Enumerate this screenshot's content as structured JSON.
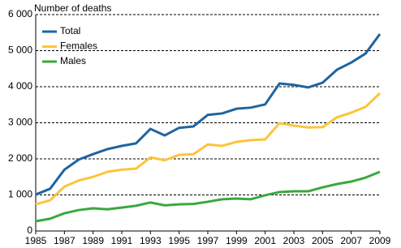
{
  "chart_data": {
    "type": "line",
    "title": "Number of deaths",
    "x": [
      1985,
      1986,
      1987,
      1988,
      1989,
      1990,
      1991,
      1992,
      1993,
      1994,
      1995,
      1996,
      1997,
      1998,
      1999,
      2000,
      2001,
      2002,
      2003,
      2004,
      2005,
      2006,
      2007,
      2008,
      2009
    ],
    "series": [
      {
        "name": "Total",
        "color": "#1f64a0",
        "values": [
          1010,
          1170,
          1700,
          1980,
          2130,
          2270,
          2360,
          2430,
          2830,
          2650,
          2860,
          2900,
          3220,
          3260,
          3390,
          3420,
          3510,
          4090,
          4050,
          3980,
          4110,
          4470,
          4670,
          4920,
          5460
        ]
      },
      {
        "name": "Females",
        "color": "#fcc43c",
        "values": [
          740,
          850,
          1230,
          1400,
          1500,
          1640,
          1700,
          1730,
          2040,
          1960,
          2110,
          2130,
          2400,
          2360,
          2470,
          2520,
          2540,
          2990,
          2920,
          2870,
          2880,
          3150,
          3280,
          3440,
          3820
        ]
      },
      {
        "name": "Males",
        "color": "#3aa83e",
        "values": [
          270,
          340,
          490,
          580,
          630,
          600,
          650,
          700,
          790,
          710,
          740,
          750,
          810,
          880,
          900,
          880,
          990,
          1080,
          1100,
          1100,
          1210,
          1300,
          1370,
          1480,
          1640
        ]
      }
    ],
    "xlim": [
      1985,
      2009
    ],
    "xticks": [
      1985,
      1987,
      1989,
      1991,
      1993,
      1995,
      1997,
      1999,
      2001,
      2003,
      2005,
      2007,
      2009
    ],
    "ylim": [
      0,
      6000
    ],
    "yticks": [
      0,
      {
        "value": 1000,
        "label": "1 000"
      },
      {
        "value": 2000,
        "label": "2 000"
      },
      {
        "value": 3000,
        "label": "3 000"
      },
      {
        "value": 4000,
        "label": "4 000"
      },
      {
        "value": 5000,
        "label": "5 000"
      },
      {
        "value": 6000,
        "label": "6 000"
      }
    ],
    "grid": true,
    "legend": "upper-left"
  }
}
